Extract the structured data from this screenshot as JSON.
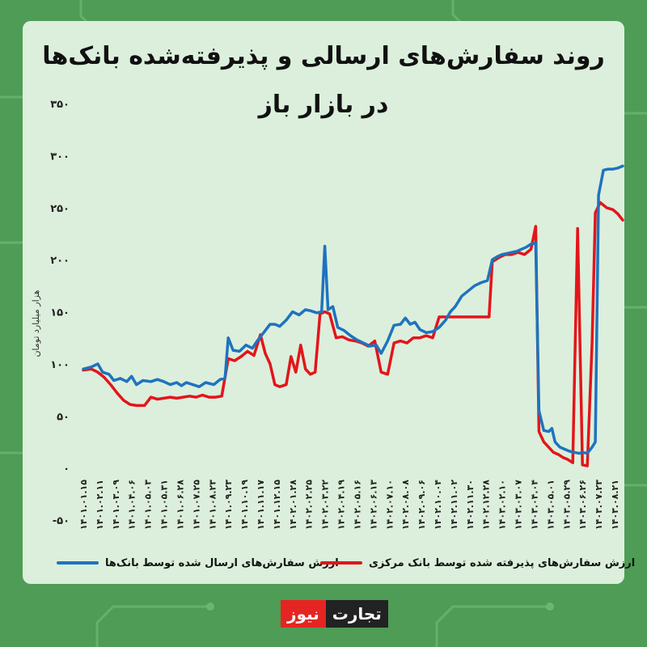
{
  "title": "روند سفارش‌های ارسالی و پذیرفته‌شده بانک‌ها در بازار باز",
  "logo": {
    "part1": "تجارت",
    "part2": "نیوز"
  },
  "colors": {
    "background": "#4e9c55",
    "card": "#dcefdc",
    "blue": "#1e73be",
    "red": "#e3151a"
  },
  "chart_data": {
    "type": "line",
    "title": "روند سفارش‌های ارسالی و پذیرفته‌شده بانک‌ها در بازار باز",
    "ylabel": "هزار میلیارد تومان",
    "xlabel": "",
    "ylim": [
      -50,
      350
    ],
    "yticks": [
      "-۵۰",
      "۰",
      "۵۰",
      "۱۰۰",
      "۱۵۰",
      "۲۰۰",
      "۲۵۰",
      "۳۰۰",
      "۳۵۰"
    ],
    "ytick_values": [
      -50,
      0,
      50,
      100,
      150,
      200,
      250,
      300,
      350
    ],
    "grid": false,
    "legend_position": "bottom",
    "categories": [
      "۱۴۰۱.۰۱.۱۵",
      "۱۴۰۱.۰۲.۱۱",
      "۱۴۰۱.۰۳.۰۹",
      "۱۴۰۱.۰۴.۰۶",
      "۱۴۰۱.۰۵.۰۳",
      "۱۴۰۱.۰۵.۳۱",
      "۱۴۰۱.۰۶.۲۸",
      "۱۴۰۱.۰۷.۲۵",
      "۱۴۰۱.۰۸.۲۳",
      "۱۴۰۱.۰۹.۲۳",
      "۱۴۰۱.۱۰.۱۹",
      "۱۴۰۱.۱۱.۱۷",
      "۱۴۰۱.۱۲.۱۵",
      "۱۴۰۲.۰۱.۲۸",
      "۱۴۰۲.۰۲.۲۵",
      "۱۴۰۲.۰۳.۲۲",
      "۱۴۰۲.۰۴.۱۹",
      "۱۴۰۲.۰۵.۱۶",
      "۱۴۰۲.۰۶.۱۳",
      "۱۴۰۲.۰۷.۱۰",
      "۱۴۰۲.۰۸.۰۸",
      "۱۴۰۲.۰۹.۰۶",
      "۱۴۰۲.۱۰.۰۴",
      "۱۴۰۲.۱۱.۰۲",
      "۱۴۰۲.۱۱.۳۰",
      "۱۴۰۲.۱۲.۲۸",
      "۱۴۰۳.۰۲.۱۰",
      "۱۴۰۳.۰۳.۰۷",
      "۱۴۰۳.۰۴.۰۴",
      "۱۴۰۳.۰۵.۰۱",
      "۱۴۰۳.۰۵.۲۹",
      "۱۴۰۳.۰۶.۲۶",
      "۱۴۰۳.۰۷.۲۳",
      "۱۴۰۳.۰۸.۲۱"
    ],
    "x": [
      0,
      1,
      2,
      3,
      4,
      5,
      6,
      7,
      8,
      9,
      10,
      11,
      12,
      13,
      14,
      15,
      16,
      17,
      18,
      19,
      20,
      21,
      22,
      23,
      24,
      25,
      26,
      27,
      28,
      29,
      30,
      31,
      32,
      33
    ],
    "series": [
      {
        "name": "ارزش سفارش‌های ارسال شده توسط بانک‌ها",
        "color": "#1e73be",
        "points": [
          [
            0,
            95
          ],
          [
            0.5,
            97
          ],
          [
            0.9,
            100
          ],
          [
            1.2,
            92
          ],
          [
            1.6,
            90
          ],
          [
            1.9,
            84
          ],
          [
            2.3,
            86
          ],
          [
            2.7,
            83
          ],
          [
            3.0,
            88
          ],
          [
            3.3,
            80
          ],
          [
            3.7,
            84
          ],
          [
            4.2,
            83
          ],
          [
            4.6,
            85
          ],
          [
            5.0,
            83
          ],
          [
            5.4,
            80
          ],
          [
            5.8,
            82
          ],
          [
            6.1,
            79
          ],
          [
            6.4,
            82
          ],
          [
            6.8,
            80
          ],
          [
            7.2,
            78
          ],
          [
            7.6,
            82
          ],
          [
            8.1,
            80
          ],
          [
            8.5,
            85
          ],
          [
            8.8,
            86
          ],
          [
            9.0,
            125
          ],
          [
            9.3,
            113
          ],
          [
            9.7,
            112
          ],
          [
            10.1,
            118
          ],
          [
            10.5,
            115
          ],
          [
            10.8,
            122
          ],
          [
            11.2,
            130
          ],
          [
            11.6,
            138
          ],
          [
            11.9,
            138
          ],
          [
            12.2,
            136
          ],
          [
            12.6,
            142
          ],
          [
            13.0,
            150
          ],
          [
            13.4,
            147
          ],
          [
            13.8,
            152
          ],
          [
            14.1,
            151
          ],
          [
            14.5,
            149
          ],
          [
            14.8,
            150
          ],
          [
            15.0,
            213
          ],
          [
            15.2,
            152
          ],
          [
            15.5,
            155
          ],
          [
            15.8,
            135
          ],
          [
            16.2,
            132
          ],
          [
            16.6,
            127
          ],
          [
            17.0,
            123
          ],
          [
            17.4,
            120
          ],
          [
            17.8,
            117
          ],
          [
            18.2,
            118
          ],
          [
            18.5,
            110
          ],
          [
            18.9,
            122
          ],
          [
            19.3,
            137
          ],
          [
            19.7,
            138
          ],
          [
            20.0,
            144
          ],
          [
            20.3,
            138
          ],
          [
            20.6,
            140
          ],
          [
            20.9,
            133
          ],
          [
            21.3,
            130
          ],
          [
            21.7,
            131
          ],
          [
            22.1,
            135
          ],
          [
            22.5,
            142
          ],
          [
            22.8,
            150
          ],
          [
            23.1,
            155
          ],
          [
            23.5,
            165
          ],
          [
            23.9,
            170
          ],
          [
            24.3,
            175
          ],
          [
            24.7,
            178
          ],
          [
            25.1,
            180
          ],
          [
            25.4,
            200
          ],
          [
            25.7,
            203
          ],
          [
            26.0,
            205
          ],
          [
            26.3,
            206
          ],
          [
            26.6,
            207
          ],
          [
            26.9,
            208
          ],
          [
            27.2,
            210
          ],
          [
            27.5,
            212
          ],
          [
            27.8,
            215
          ],
          [
            28.1,
            216
          ],
          [
            28.3,
            55
          ],
          [
            28.6,
            36
          ],
          [
            28.9,
            35
          ],
          [
            29.1,
            38
          ],
          [
            29.3,
            25
          ],
          [
            29.6,
            20
          ],
          [
            29.9,
            18
          ],
          [
            30.2,
            16
          ],
          [
            30.5,
            15
          ],
          [
            30.8,
            14
          ],
          [
            31.0,
            15
          ],
          [
            31.3,
            14
          ],
          [
            31.6,
            20
          ],
          [
            31.8,
            25
          ],
          [
            32.0,
            262
          ],
          [
            32.3,
            286
          ],
          [
            32.6,
            287
          ],
          [
            32.9,
            287
          ],
          [
            33.2,
            288
          ],
          [
            33.5,
            290
          ]
        ]
      },
      {
        "name": "ارزش سفارش‌های پذیرفته شده توسط بانک مرکزی",
        "color": "#e3151a",
        "points": [
          [
            0,
            94
          ],
          [
            0.5,
            95
          ],
          [
            0.9,
            92
          ],
          [
            1.3,
            87
          ],
          [
            1.7,
            80
          ],
          [
            2.1,
            72
          ],
          [
            2.5,
            65
          ],
          [
            2.9,
            61
          ],
          [
            3.3,
            60
          ],
          [
            3.8,
            60
          ],
          [
            4.2,
            68
          ],
          [
            4.6,
            66
          ],
          [
            5.0,
            67
          ],
          [
            5.4,
            68
          ],
          [
            5.8,
            67
          ],
          [
            6.2,
            68
          ],
          [
            6.6,
            69
          ],
          [
            7.0,
            68
          ],
          [
            7.4,
            70
          ],
          [
            7.8,
            68
          ],
          [
            8.2,
            68
          ],
          [
            8.6,
            69
          ],
          [
            9.0,
            105
          ],
          [
            9.4,
            103
          ],
          [
            9.8,
            107
          ],
          [
            10.2,
            112
          ],
          [
            10.6,
            108
          ],
          [
            11.0,
            128
          ],
          [
            11.3,
            110
          ],
          [
            11.6,
            100
          ],
          [
            11.9,
            80
          ],
          [
            12.2,
            78
          ],
          [
            12.6,
            80
          ],
          [
            12.9,
            107
          ],
          [
            13.2,
            92
          ],
          [
            13.5,
            118
          ],
          [
            13.8,
            95
          ],
          [
            14.1,
            90
          ],
          [
            14.4,
            92
          ],
          [
            14.7,
            148
          ],
          [
            15.0,
            150
          ],
          [
            15.3,
            148
          ],
          [
            15.7,
            125
          ],
          [
            16.1,
            126
          ],
          [
            16.5,
            123
          ],
          [
            16.9,
            122
          ],
          [
            17.3,
            120
          ],
          [
            17.7,
            117
          ],
          [
            18.1,
            122
          ],
          [
            18.5,
            92
          ],
          [
            18.9,
            90
          ],
          [
            19.3,
            120
          ],
          [
            19.7,
            122
          ],
          [
            20.1,
            120
          ],
          [
            20.5,
            125
          ],
          [
            20.9,
            125
          ],
          [
            21.3,
            127
          ],
          [
            21.7,
            125
          ],
          [
            22.1,
            145
          ],
          [
            22.5,
            145
          ],
          [
            22.9,
            145
          ],
          [
            23.3,
            145
          ],
          [
            23.7,
            145
          ],
          [
            24.1,
            145
          ],
          [
            24.5,
            145
          ],
          [
            24.9,
            145
          ],
          [
            25.2,
            145
          ],
          [
            25.4,
            198
          ],
          [
            25.8,
            202
          ],
          [
            26.2,
            205
          ],
          [
            26.6,
            205
          ],
          [
            27.0,
            207
          ],
          [
            27.4,
            205
          ],
          [
            27.8,
            210
          ],
          [
            28.1,
            232
          ],
          [
            28.3,
            35
          ],
          [
            28.6,
            25
          ],
          [
            28.9,
            20
          ],
          [
            29.2,
            15
          ],
          [
            29.5,
            13
          ],
          [
            29.8,
            10
          ],
          [
            30.1,
            8
          ],
          [
            30.4,
            5
          ],
          [
            30.7,
            230
          ],
          [
            31.0,
            3
          ],
          [
            31.3,
            2
          ],
          [
            31.6,
            120
          ],
          [
            31.8,
            245
          ],
          [
            32.1,
            255
          ],
          [
            32.5,
            250
          ],
          [
            32.9,
            248
          ],
          [
            33.2,
            244
          ],
          [
            33.5,
            238
          ]
        ]
      }
    ]
  }
}
